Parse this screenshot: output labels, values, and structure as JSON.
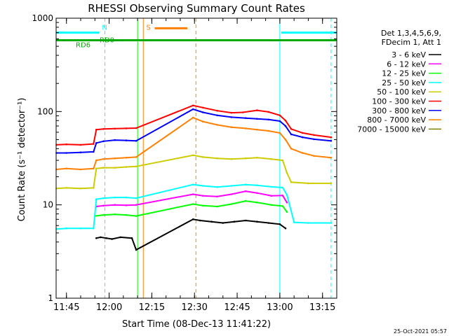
{
  "chart_data": {
    "type": "line",
    "title": "RHESSI Observing Summary Count Rates",
    "xlabel": "Start Time (08-Dec-13 11:41:22)",
    "ylabel": "Count Rate (s⁻¹ detector⁻¹)",
    "y_scale": "log",
    "ylim": [
      1,
      1000
    ],
    "xlim": [
      "11:41:22",
      "13:20:00"
    ],
    "y_tick_labels": [
      "1",
      "10",
      "100",
      "1000"
    ],
    "y_tick_values": [
      1,
      10,
      100,
      1000
    ],
    "x_tick_labels": [
      "11:45",
      "12:00",
      "12:15",
      "12:30",
      "12:45",
      "13:00",
      "13:15"
    ],
    "x_tick_values": [
      "11:45",
      "12:00",
      "12:15",
      "12:30",
      "12:45",
      "13:00",
      "13:15"
    ],
    "timestamp": "25-Oct-2021 05:57",
    "legend_title": [
      "Det 1,3,4,5,6,9,",
      "FDecim 1, Att 1"
    ],
    "legend_position": "right",
    "series": [
      {
        "name": "3 - 6 keV",
        "color": "#000000",
        "points": [
          [
            "11:55:30",
            4.4
          ],
          [
            "11:57:00",
            4.5
          ],
          [
            "11:59:00",
            4.4
          ],
          [
            "12:01:00",
            4.3
          ],
          [
            "12:04:00",
            4.5
          ],
          [
            "12:08:00",
            4.4
          ],
          [
            "12:09:30",
            3.3
          ],
          [
            "12:29:30",
            7.0
          ],
          [
            "12:32:00",
            6.8
          ],
          [
            "12:36:00",
            6.6
          ],
          [
            "12:40:00",
            6.4
          ],
          [
            "12:44:00",
            6.6
          ],
          [
            "12:48:00",
            6.8
          ],
          [
            "12:52:00",
            6.6
          ],
          [
            "12:56:00",
            6.4
          ],
          [
            "13:00:00",
            6.2
          ],
          [
            "13:02:00",
            5.6
          ]
        ]
      },
      {
        "name": "6 - 12 keV",
        "color": "#ff00ff",
        "points": [
          [
            "11:55:30",
            9.6
          ],
          [
            "11:58:00",
            9.8
          ],
          [
            "12:02:00",
            10.0
          ],
          [
            "12:06:00",
            9.9
          ],
          [
            "12:09:30",
            10.0
          ],
          [
            "12:29:30",
            13.0
          ],
          [
            "12:33:00",
            12.5
          ],
          [
            "12:38:00",
            12.3
          ],
          [
            "12:43:00",
            13.0
          ],
          [
            "12:48:00",
            14.0
          ],
          [
            "12:52:00",
            13.4
          ],
          [
            "12:57:00",
            12.5
          ],
          [
            "13:01:00",
            12.6
          ],
          [
            "13:02:30",
            10.6
          ]
        ]
      },
      {
        "name": "12 - 25 keV",
        "color": "#00ff00",
        "points": [
          [
            "11:55:00",
            7.6
          ],
          [
            "11:58:00",
            7.8
          ],
          [
            "12:02:00",
            7.9
          ],
          [
            "12:06:00",
            7.8
          ],
          [
            "12:09:30",
            7.6
          ],
          [
            "12:29:30",
            10.2
          ],
          [
            "12:33:00",
            9.8
          ],
          [
            "12:38:00",
            9.6
          ],
          [
            "12:43:00",
            10.2
          ],
          [
            "12:48:00",
            11.0
          ],
          [
            "12:52:00",
            10.6
          ],
          [
            "12:57:00",
            10.0
          ],
          [
            "13:01:00",
            9.7
          ],
          [
            "13:02:30",
            8.4
          ]
        ]
      },
      {
        "name": "25 - 50 keV",
        "color": "#00ffff",
        "points": [
          [
            "11:41:30",
            5.5
          ],
          [
            "11:45:00",
            5.6
          ],
          [
            "11:50:00",
            5.6
          ],
          [
            "11:54:30",
            5.6
          ],
          [
            "11:55:30",
            11.5
          ],
          [
            "11:58:00",
            11.8
          ],
          [
            "12:02:00",
            12.0
          ],
          [
            "12:06:00",
            12.0
          ],
          [
            "12:09:30",
            11.8
          ],
          [
            "12:29:30",
            16.5
          ],
          [
            "12:33:00",
            16.0
          ],
          [
            "12:38:00",
            15.5
          ],
          [
            "12:43:00",
            16.0
          ],
          [
            "12:48:00",
            16.5
          ],
          [
            "12:52:00",
            16.2
          ],
          [
            "12:57:00",
            15.6
          ],
          [
            "13:01:00",
            15.3
          ],
          [
            "13:02:30",
            12.8
          ],
          [
            "13:05:00",
            6.5
          ],
          [
            "13:10:00",
            6.4
          ],
          [
            "13:18:00",
            6.4
          ]
        ]
      },
      {
        "name": "50 - 100 keV",
        "color": "#cccc00",
        "points": [
          [
            "11:41:30",
            15.0
          ],
          [
            "11:45:00",
            15.2
          ],
          [
            "11:50:00",
            15.0
          ],
          [
            "11:54:30",
            15.2
          ],
          [
            "11:55:30",
            24.5
          ],
          [
            "11:58:00",
            25.0
          ],
          [
            "12:02:00",
            25.0
          ],
          [
            "12:06:00",
            25.5
          ],
          [
            "12:09:30",
            25.8
          ],
          [
            "12:29:30",
            34.0
          ],
          [
            "12:33:00",
            32.5
          ],
          [
            "12:38:00",
            31.5
          ],
          [
            "12:43:00",
            31.0
          ],
          [
            "12:48:00",
            31.5
          ],
          [
            "12:52:00",
            32.0
          ],
          [
            "12:57:00",
            31.0
          ],
          [
            "13:01:00",
            30.0
          ],
          [
            "13:02:30",
            22.0
          ],
          [
            "13:04:00",
            17.5
          ],
          [
            "13:10:00",
            17.0
          ],
          [
            "13:18:00",
            17.0
          ]
        ]
      },
      {
        "name": "100 - 300 keV",
        "color": "#ff0000",
        "points": [
          [
            "11:41:30",
            44.0
          ],
          [
            "11:45:00",
            44.5
          ],
          [
            "11:50:00",
            44.0
          ],
          [
            "11:54:30",
            45.0
          ],
          [
            "11:55:30",
            64.0
          ],
          [
            "11:58:00",
            65.0
          ],
          [
            "12:02:00",
            65.5
          ],
          [
            "12:06:00",
            66.0
          ],
          [
            "12:09:30",
            66.5
          ],
          [
            "12:29:30",
            116.0
          ],
          [
            "12:33:00",
            110.0
          ],
          [
            "12:38:00",
            102.0
          ],
          [
            "12:43:00",
            97.0
          ],
          [
            "12:47:00",
            98.0
          ],
          [
            "12:52:00",
            103.0
          ],
          [
            "12:56:00",
            99.0
          ],
          [
            "13:00:00",
            91.0
          ],
          [
            "13:02:00",
            80.0
          ],
          [
            "13:04:00",
            65.0
          ],
          [
            "13:08:00",
            59.0
          ],
          [
            "13:12:00",
            56.0
          ],
          [
            "13:18:00",
            53.0
          ]
        ]
      },
      {
        "name": "300 - 800 keV",
        "color": "#0000ff",
        "points": [
          [
            "11:41:30",
            36.0
          ],
          [
            "11:45:00",
            36.0
          ],
          [
            "11:50:00",
            36.5
          ],
          [
            "11:54:30",
            37.0
          ],
          [
            "11:55:30",
            46.0
          ],
          [
            "11:58:00",
            48.0
          ],
          [
            "12:02:00",
            49.5
          ],
          [
            "12:06:00",
            49.0
          ],
          [
            "12:09:30",
            48.5
          ],
          [
            "12:29:30",
            106.0
          ],
          [
            "12:33:00",
            98.0
          ],
          [
            "12:38:00",
            91.0
          ],
          [
            "12:43:00",
            87.0
          ],
          [
            "12:48:00",
            85.0
          ],
          [
            "12:52:00",
            83.5
          ],
          [
            "12:56:00",
            82.0
          ],
          [
            "13:00:00",
            79.0
          ],
          [
            "13:02:00",
            70.0
          ],
          [
            "13:04:00",
            57.0
          ],
          [
            "13:08:00",
            53.0
          ],
          [
            "13:12:00",
            50.5
          ],
          [
            "13:18:00",
            48.5
          ]
        ]
      },
      {
        "name": "800 - 7000 keV",
        "color": "#ff8000",
        "points": [
          [
            "11:41:30",
            24.0
          ],
          [
            "11:45:00",
            24.5
          ],
          [
            "11:50:00",
            24.0
          ],
          [
            "11:54:30",
            24.5
          ],
          [
            "11:55:30",
            30.0
          ],
          [
            "11:58:00",
            31.0
          ],
          [
            "12:02:00",
            31.5
          ],
          [
            "12:06:00",
            32.0
          ],
          [
            "12:09:30",
            32.5
          ],
          [
            "12:29:30",
            86.0
          ],
          [
            "12:33:00",
            78.0
          ],
          [
            "12:38:00",
            72.0
          ],
          [
            "12:43:00",
            68.0
          ],
          [
            "12:48:00",
            66.0
          ],
          [
            "12:52:00",
            64.0
          ],
          [
            "12:56:00",
            62.0
          ],
          [
            "13:00:00",
            59.0
          ],
          [
            "13:02:00",
            50.0
          ],
          [
            "13:04:00",
            40.0
          ],
          [
            "13:08:00",
            36.0
          ],
          [
            "13:12:00",
            33.5
          ],
          [
            "13:18:00",
            32.0
          ]
        ]
      },
      {
        "name": "7000 - 15000 keV",
        "color": "#808000",
        "points": []
      }
    ],
    "mode_bars": [
      {
        "label": "N",
        "color": "#00ffff",
        "level": 700,
        "spans": [
          [
            "11:41:22",
            "11:56:30"
          ],
          [
            "13:00:30",
            "13:20:00"
          ]
        ]
      },
      {
        "label": "S",
        "color": "#ff8000",
        "level": 780,
        "spans": [
          [
            "12:16:00",
            "12:27:30"
          ]
        ]
      },
      {
        "label": "RD0",
        "color": "#00aa00",
        "level": 580,
        "spans": [
          [
            "11:41:22",
            "13:20:00"
          ]
        ]
      },
      {
        "label": "RD6",
        "color": "#00aa00",
        "level": 580,
        "spans": []
      }
    ],
    "event_lines": [
      {
        "time": "11:58:30",
        "color": "#00ffff",
        "style": "dashed"
      },
      {
        "time": "12:10:00",
        "color": "#00ff00",
        "style": "solid"
      },
      {
        "time": "12:12:00",
        "color": "#ff8000",
        "style": "solid"
      },
      {
        "time": "12:30:30",
        "color": "#ff8000",
        "style": "dashed"
      },
      {
        "time": "13:00:00",
        "color": "#00ffff",
        "style": "solid"
      },
      {
        "time": "13:18:00",
        "color": "#00ffff",
        "style": "dashed"
      }
    ]
  }
}
